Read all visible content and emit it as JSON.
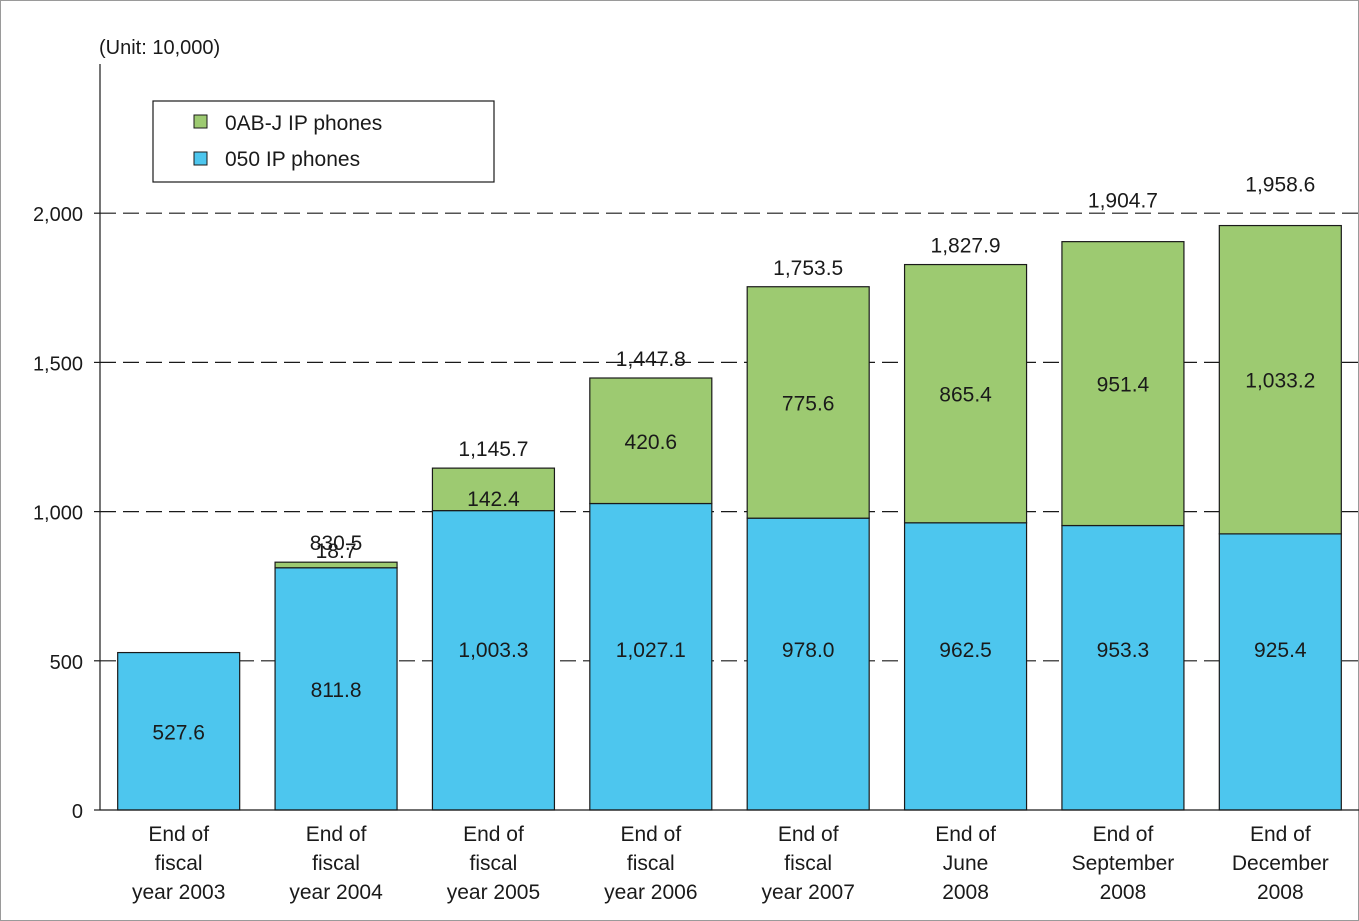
{
  "chart_data": {
    "type": "bar",
    "stacked": true,
    "unit_label": "(Unit: 10,000)",
    "categories": [
      [
        "End of",
        "fiscal",
        "year 2003"
      ],
      [
        "End of",
        "fiscal",
        "year 2004"
      ],
      [
        "End of",
        "fiscal",
        "year 2005"
      ],
      [
        "End of",
        "fiscal",
        "year 2006"
      ],
      [
        "End of",
        "fiscal",
        "year 2007"
      ],
      [
        "End of",
        "June",
        "2008"
      ],
      [
        "End of",
        "September",
        "2008"
      ],
      [
        "End of",
        "December",
        "2008"
      ]
    ],
    "series": [
      {
        "name": "050 IP phones",
        "color": "#4dc6ee",
        "values": [
          527.6,
          811.8,
          1003.3,
          1027.1,
          978.0,
          962.5,
          953.3,
          925.4
        ],
        "labels": [
          "527.6",
          "811.8",
          "1,003.3",
          "1,027.1",
          "978.0",
          "962.5",
          "953.3",
          "925.4"
        ]
      },
      {
        "name": "0AB-J IP phones",
        "color": "#9dca71",
        "values": [
          0,
          18.7,
          142.4,
          420.6,
          775.6,
          865.4,
          951.4,
          1033.2
        ],
        "labels": [
          "",
          "18.7",
          "142.4",
          "420.6",
          "775.6",
          "865.4",
          "951.4",
          "1,033.2"
        ]
      }
    ],
    "totals": [
      527.6,
      830.5,
      1145.7,
      1447.8,
      1753.5,
      1827.9,
      1904.7,
      1958.6
    ],
    "total_labels": [
      "",
      "830.5",
      "1,145.7",
      "1,447.8",
      "1,753.5",
      "1,827.9",
      "1,904.7",
      "1,958.6"
    ],
    "yticks": [
      0,
      500,
      1000,
      1500,
      2000
    ],
    "ytick_labels": [
      "0",
      "500",
      "1,000",
      "1,500",
      "2,000"
    ],
    "ylim": [
      0,
      2500
    ],
    "grid": "dashed horizontal",
    "legend": {
      "position": "top-left",
      "entries": [
        "0AB-J IP phones",
        "050 IP phones"
      ]
    }
  }
}
